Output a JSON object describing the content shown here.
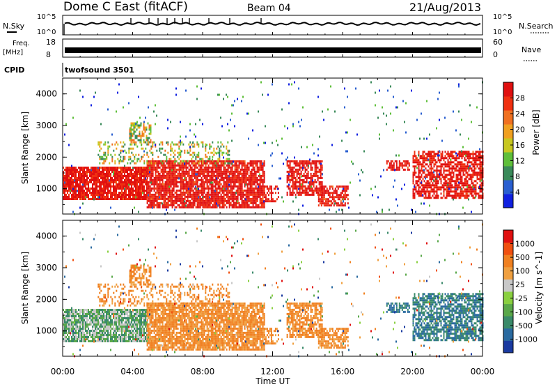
{
  "header": {
    "station": "Dome C East (fitACF)",
    "beam": "Beam 04",
    "date": "21/Aug/2013"
  },
  "top_panels": {
    "nsky": {
      "label": "N.Sky",
      "ticks": [
        "10^5",
        "10^0"
      ]
    },
    "nsearch": {
      "label": "N.Search",
      "ticks": [
        "10^5",
        "10^0"
      ]
    },
    "freq": {
      "label_line1": "Freq.",
      "label_line2": "[MHz]",
      "ticks": [
        "18",
        "8"
      ]
    },
    "nave": {
      "label": "Nave",
      "ticks": [
        "60",
        "0"
      ]
    },
    "cpid": {
      "label": "CPID",
      "value": "twofsound 3501"
    }
  },
  "chart_data": [
    {
      "type": "heatmap",
      "name": "power",
      "ylabel": "Slant Range [km]",
      "yticks": [
        "1000",
        "2000",
        "3000",
        "4000"
      ],
      "ylim": [
        200,
        4500
      ],
      "xlim_hours": [
        0,
        24
      ],
      "colorbar": {
        "label": "Power [dB]",
        "ticks": [
          "28",
          "24",
          "20",
          "16",
          "12",
          "8",
          "4"
        ],
        "colors": [
          "#1020e0",
          "#2a5fd0",
          "#3a8a5a",
          "#5fbf3a",
          "#c8c820",
          "#f0a020",
          "#f07020",
          "#f03010",
          "#e01010"
        ]
      }
    },
    {
      "type": "heatmap",
      "name": "velocity",
      "ylabel": "Slant Range [km]",
      "yticks": [
        "1000",
        "2000",
        "3000",
        "4000"
      ],
      "ylim": [
        200,
        4500
      ],
      "xlim_hours": [
        0,
        24
      ],
      "colorbar": {
        "label": "Velocity [m s^-1]",
        "ticks": [
          "1000",
          "500",
          "100",
          "25",
          "-25",
          "-100",
          "-500",
          "-1000"
        ],
        "colors": [
          "#1a3aa0",
          "#2a6aa0",
          "#3a8a6a",
          "#5aa84a",
          "#8ad040",
          "#c8c8c8",
          "#f0a040",
          "#f08020",
          "#f05010",
          "#e01010"
        ]
      }
    }
  ],
  "xaxis": {
    "ticks": [
      "00:00",
      "04:00",
      "08:00",
      "12:00",
      "16:00",
      "20:00",
      "00:00"
    ],
    "label": "Time UT"
  }
}
